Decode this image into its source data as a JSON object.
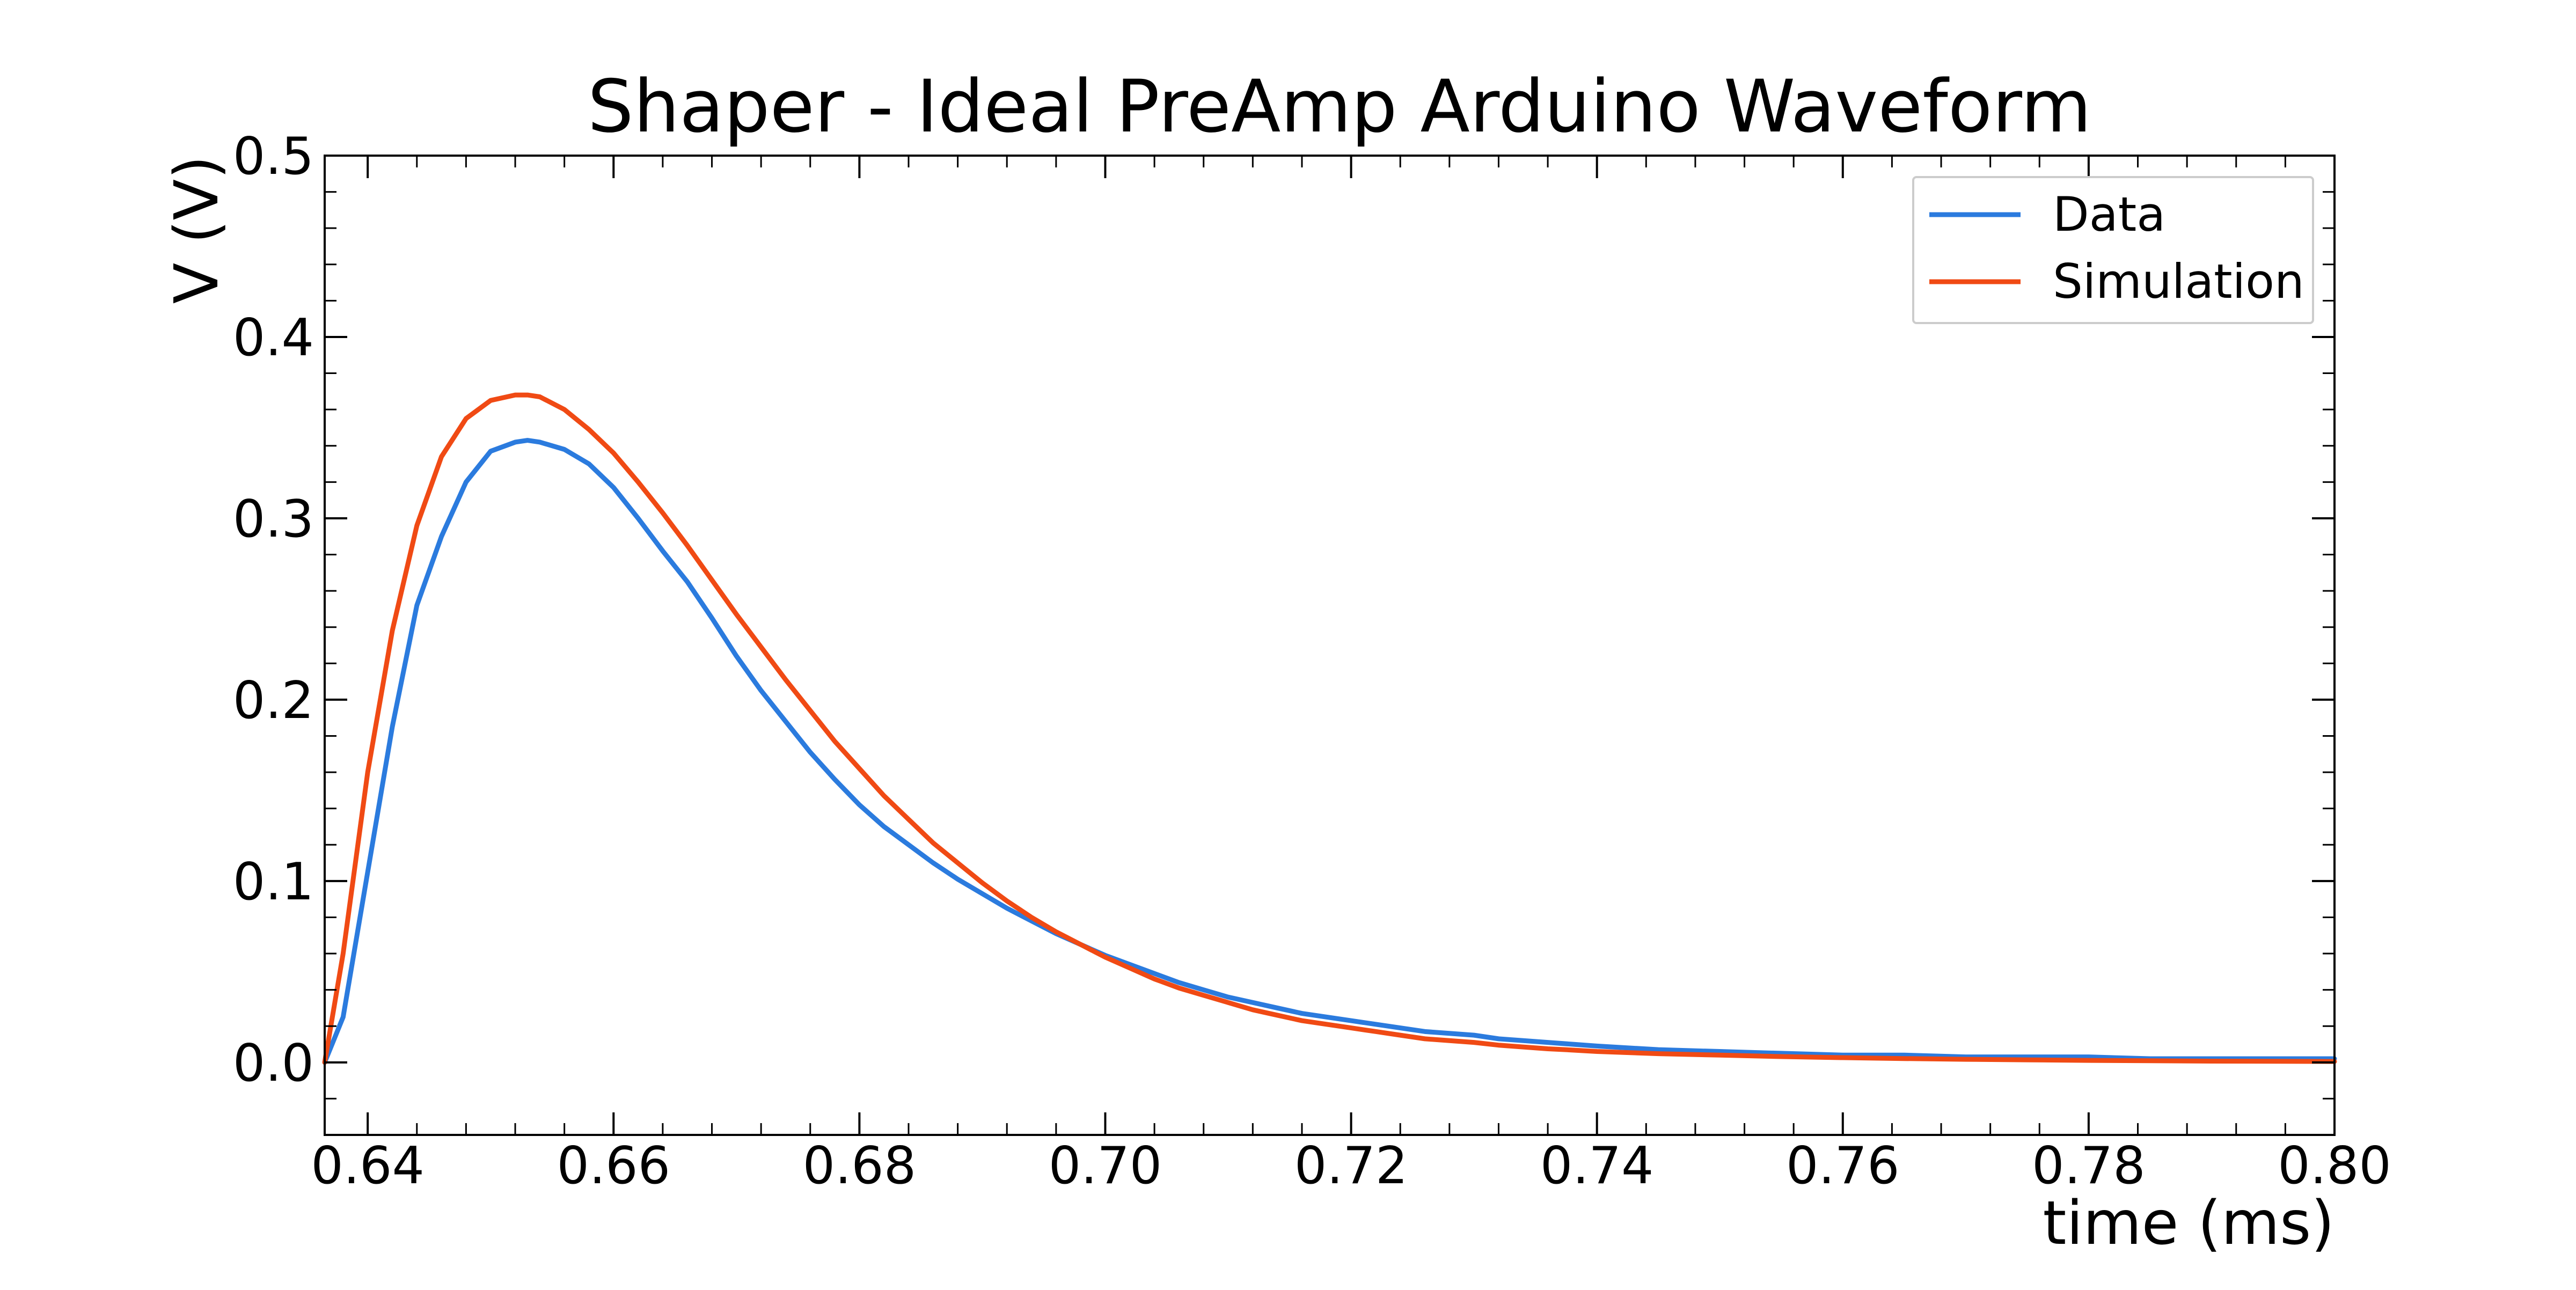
{
  "chart_data": {
    "type": "line",
    "title": "Shaper - Ideal PreAmp Arduino Waveform",
    "xlabel": "time (ms)",
    "ylabel": "V (V)",
    "xlim": [
      0.6365,
      0.8
    ],
    "ylim": [
      -0.04,
      0.5
    ],
    "x_ticks": [
      0.64,
      0.66,
      0.68,
      0.7,
      0.72,
      0.74,
      0.76,
      0.78,
      0.8
    ],
    "x_tick_labels": [
      "0.64",
      "0.66",
      "0.68",
      "0.70",
      "0.72",
      "0.74",
      "0.76",
      "0.78",
      "0.80"
    ],
    "y_ticks": [
      0.0,
      0.1,
      0.2,
      0.3,
      0.4,
      0.5
    ],
    "y_tick_labels": [
      "0.0",
      "0.1",
      "0.2",
      "0.3",
      "0.4",
      "0.5"
    ],
    "grid": false,
    "legend_position": "top-right",
    "series": [
      {
        "name": "Data",
        "color": "#2b7bde",
        "x": [
          0.6365,
          0.638,
          0.64,
          0.642,
          0.644,
          0.646,
          0.648,
          0.65,
          0.652,
          0.653,
          0.654,
          0.656,
          0.658,
          0.66,
          0.662,
          0.664,
          0.666,
          0.668,
          0.67,
          0.672,
          0.674,
          0.676,
          0.678,
          0.68,
          0.682,
          0.684,
          0.686,
          0.688,
          0.69,
          0.692,
          0.694,
          0.696,
          0.698,
          0.7,
          0.702,
          0.704,
          0.706,
          0.708,
          0.71,
          0.712,
          0.714,
          0.716,
          0.718,
          0.72,
          0.722,
          0.724,
          0.726,
          0.728,
          0.73,
          0.732,
          0.734,
          0.736,
          0.738,
          0.74,
          0.745,
          0.75,
          0.755,
          0.76,
          0.765,
          0.77,
          0.775,
          0.78,
          0.785,
          0.79,
          0.795,
          0.8
        ],
        "y": [
          0.0,
          0.025,
          0.105,
          0.185,
          0.252,
          0.29,
          0.32,
          0.337,
          0.342,
          0.343,
          0.342,
          0.338,
          0.33,
          0.317,
          0.3,
          0.282,
          0.265,
          0.245,
          0.224,
          0.205,
          0.188,
          0.171,
          0.156,
          0.142,
          0.13,
          0.12,
          0.11,
          0.101,
          0.093,
          0.085,
          0.078,
          0.071,
          0.065,
          0.059,
          0.054,
          0.049,
          0.044,
          0.04,
          0.036,
          0.033,
          0.03,
          0.027,
          0.025,
          0.023,
          0.021,
          0.019,
          0.017,
          0.016,
          0.015,
          0.013,
          0.012,
          0.011,
          0.01,
          0.009,
          0.007,
          0.006,
          0.005,
          0.004,
          0.004,
          0.003,
          0.003,
          0.003,
          0.002,
          0.002,
          0.002,
          0.002
        ]
      },
      {
        "name": "Simulation",
        "color": "#f04a14",
        "x": [
          0.6365,
          0.638,
          0.64,
          0.642,
          0.644,
          0.646,
          0.648,
          0.65,
          0.652,
          0.653,
          0.654,
          0.656,
          0.658,
          0.66,
          0.662,
          0.664,
          0.666,
          0.668,
          0.67,
          0.672,
          0.674,
          0.676,
          0.678,
          0.68,
          0.682,
          0.684,
          0.686,
          0.688,
          0.69,
          0.692,
          0.694,
          0.696,
          0.698,
          0.7,
          0.702,
          0.704,
          0.706,
          0.708,
          0.71,
          0.712,
          0.714,
          0.716,
          0.718,
          0.72,
          0.722,
          0.724,
          0.726,
          0.728,
          0.73,
          0.732,
          0.734,
          0.736,
          0.738,
          0.74,
          0.745,
          0.75,
          0.755,
          0.76,
          0.765,
          0.77,
          0.775,
          0.78,
          0.785,
          0.79,
          0.795,
          0.8
        ],
        "y": [
          0.0,
          0.06,
          0.16,
          0.238,
          0.296,
          0.334,
          0.355,
          0.365,
          0.368,
          0.368,
          0.367,
          0.36,
          0.349,
          0.336,
          0.32,
          0.303,
          0.285,
          0.266,
          0.247,
          0.229,
          0.211,
          0.194,
          0.177,
          0.162,
          0.147,
          0.134,
          0.121,
          0.11,
          0.099,
          0.089,
          0.08,
          0.072,
          0.065,
          0.058,
          0.052,
          0.046,
          0.041,
          0.037,
          0.033,
          0.029,
          0.026,
          0.023,
          0.021,
          0.019,
          0.017,
          0.015,
          0.013,
          0.012,
          0.011,
          0.0095,
          0.0085,
          0.0075,
          0.0068,
          0.006,
          0.0048,
          0.004,
          0.0032,
          0.0026,
          0.0021,
          0.0017,
          0.0014,
          0.0011,
          0.0009,
          0.0007,
          0.0006,
          0.0005
        ]
      }
    ]
  }
}
